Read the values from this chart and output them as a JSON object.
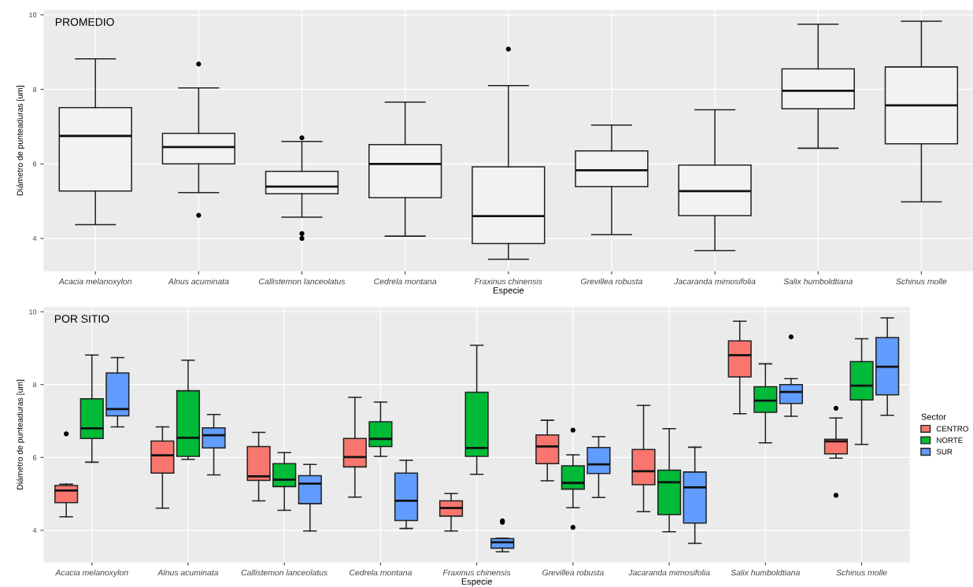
{
  "chart_data": [
    {
      "type": "box",
      "title": "PROMEDIO",
      "xlabel": "Especie",
      "ylabel": "Diámetro de punteaduras [um]",
      "categories": [
        "Acacia melanoxylon",
        "Alnus acuminata",
        "Callistemon lanceolatus",
        "Cedrela montana",
        "Fraxinus chinensis",
        "Grevillea robusta",
        "Jacaranda mimosifolia",
        "Salix humboldtiana",
        "Schinus molle"
      ],
      "ylim": [
        3.12,
        10.13
      ],
      "yticks": [
        4,
        6,
        8,
        10
      ],
      "grid": true,
      "color": "#f2f2f2",
      "boxes": [
        {
          "low": 4.37,
          "q1": 5.27,
          "median": 6.75,
          "q3": 7.51,
          "high": 8.82
        },
        {
          "low": 5.23,
          "q1": 6.0,
          "median": 6.45,
          "q3": 6.82,
          "high": 8.04,
          "outliers": [
            8.68,
            4.62
          ]
        },
        {
          "low": 4.57,
          "q1": 5.2,
          "median": 5.39,
          "q3": 5.8,
          "high": 6.6,
          "outliers": [
            6.7,
            4.13,
            4.0
          ]
        },
        {
          "low": 4.06,
          "q1": 5.09,
          "median": 6.0,
          "q3": 6.52,
          "high": 7.66
        },
        {
          "low": 3.44,
          "q1": 3.86,
          "median": 4.6,
          "q3": 5.92,
          "high": 8.1,
          "outliers": [
            9.08
          ]
        },
        {
          "low": 4.1,
          "q1": 5.39,
          "median": 5.83,
          "q3": 6.35,
          "high": 7.04
        },
        {
          "low": 3.67,
          "q1": 4.61,
          "median": 5.27,
          "q3": 5.97,
          "high": 7.45
        },
        {
          "low": 6.42,
          "q1": 7.48,
          "median": 7.96,
          "q3": 8.55,
          "high": 9.75
        },
        {
          "low": 4.98,
          "q1": 6.54,
          "median": 7.57,
          "q3": 8.6,
          "high": 9.83
        }
      ]
    },
    {
      "type": "box",
      "title": "POR SITIO",
      "xlabel": "Especie",
      "ylabel": "Diámetro de punteaduras [um]",
      "categories": [
        "Acacia melanoxylon",
        "Alnus acuminata",
        "Callistemon lanceolatus",
        "Cedrela montana",
        "Fraxinus chinensis",
        "Grevillea robusta",
        "Jacaranda mimosifolia",
        "Salix humboldtiana",
        "Schinus molle"
      ],
      "ylim": [
        3.12,
        10.13
      ],
      "yticks": [
        4,
        6,
        8,
        10
      ],
      "grid": true,
      "legend": "right",
      "legend_title": "Sector",
      "series": [
        {
          "name": "CENTRO",
          "color": "#f8766d",
          "boxes": [
            {
              "low": 4.37,
              "q1": 4.76,
              "median": 5.09,
              "q3": 5.23,
              "high": 5.27,
              "outliers": [
                6.65
              ]
            },
            {
              "low": 4.61,
              "q1": 5.57,
              "median": 6.06,
              "q3": 6.45,
              "high": 6.84
            },
            {
              "low": 4.81,
              "q1": 5.37,
              "median": 5.48,
              "q3": 6.3,
              "high": 6.69
            },
            {
              "low": 4.91,
              "q1": 5.74,
              "median": 6.01,
              "q3": 6.52,
              "high": 7.65
            },
            {
              "low": 3.98,
              "q1": 4.39,
              "median": 4.61,
              "q3": 4.81,
              "high": 5.01
            },
            {
              "low": 5.36,
              "q1": 5.83,
              "median": 6.3,
              "q3": 6.62,
              "high": 7.02
            },
            {
              "low": 4.51,
              "q1": 5.25,
              "median": 5.62,
              "q3": 6.22,
              "high": 7.43
            },
            {
              "low": 7.2,
              "q1": 8.21,
              "median": 8.81,
              "q3": 9.2,
              "high": 9.74
            },
            {
              "low": 5.98,
              "q1": 6.1,
              "median": 6.44,
              "q3": 6.5,
              "high": 7.08,
              "outliers": [
                7.35,
                4.96
              ]
            }
          ]
        },
        {
          "name": "NORTE",
          "color": "#00ba38",
          "boxes": [
            {
              "low": 5.87,
              "q1": 6.52,
              "median": 6.8,
              "q3": 7.61,
              "high": 8.81
            },
            {
              "low": 5.95,
              "q1": 6.03,
              "median": 6.54,
              "q3": 7.83,
              "high": 8.67
            },
            {
              "low": 4.55,
              "q1": 5.2,
              "median": 5.39,
              "q3": 5.83,
              "high": 6.13
            },
            {
              "low": 6.03,
              "q1": 6.3,
              "median": 6.51,
              "q3": 6.98,
              "high": 7.52
            },
            {
              "low": 5.54,
              "q1": 6.03,
              "median": 6.26,
              "q3": 7.79,
              "high": 9.08
            },
            {
              "low": 4.62,
              "q1": 5.13,
              "median": 5.3,
              "q3": 5.77,
              "high": 6.07,
              "outliers": [
                6.75,
                4.08
              ]
            },
            {
              "low": 3.96,
              "q1": 4.43,
              "median": 5.32,
              "q3": 5.65,
              "high": 6.79
            },
            {
              "low": 6.4,
              "q1": 7.24,
              "median": 7.56,
              "q3": 7.94,
              "high": 8.57
            },
            {
              "low": 6.36,
              "q1": 7.58,
              "median": 7.97,
              "q3": 8.63,
              "high": 9.26
            }
          ]
        },
        {
          "name": "SUR",
          "color": "#619cff",
          "boxes": [
            {
              "low": 6.84,
              "q1": 7.14,
              "median": 7.33,
              "q3": 8.32,
              "high": 8.74
            },
            {
              "low": 5.52,
              "q1": 6.26,
              "median": 6.61,
              "q3": 6.81,
              "high": 7.18
            },
            {
              "low": 3.98,
              "q1": 4.73,
              "median": 5.28,
              "q3": 5.5,
              "high": 5.81
            },
            {
              "low": 4.05,
              "q1": 4.27,
              "median": 4.81,
              "q3": 5.57,
              "high": 5.92
            },
            {
              "low": 3.41,
              "q1": 3.51,
              "median": 3.67,
              "q3": 3.77,
              "high": 3.78,
              "outliers": [
                4.26,
                4.22
              ]
            },
            {
              "low": 4.9,
              "q1": 5.56,
              "median": 5.81,
              "q3": 6.27,
              "high": 6.57
            },
            {
              "low": 3.64,
              "q1": 4.2,
              "median": 5.18,
              "q3": 5.6,
              "high": 6.28
            },
            {
              "low": 7.13,
              "q1": 7.48,
              "median": 7.8,
              "q3": 8.0,
              "high": 8.16,
              "outliers": [
                9.31
              ]
            },
            {
              "low": 7.16,
              "q1": 7.72,
              "median": 8.49,
              "q3": 9.29,
              "high": 9.83
            }
          ]
        }
      ]
    }
  ]
}
